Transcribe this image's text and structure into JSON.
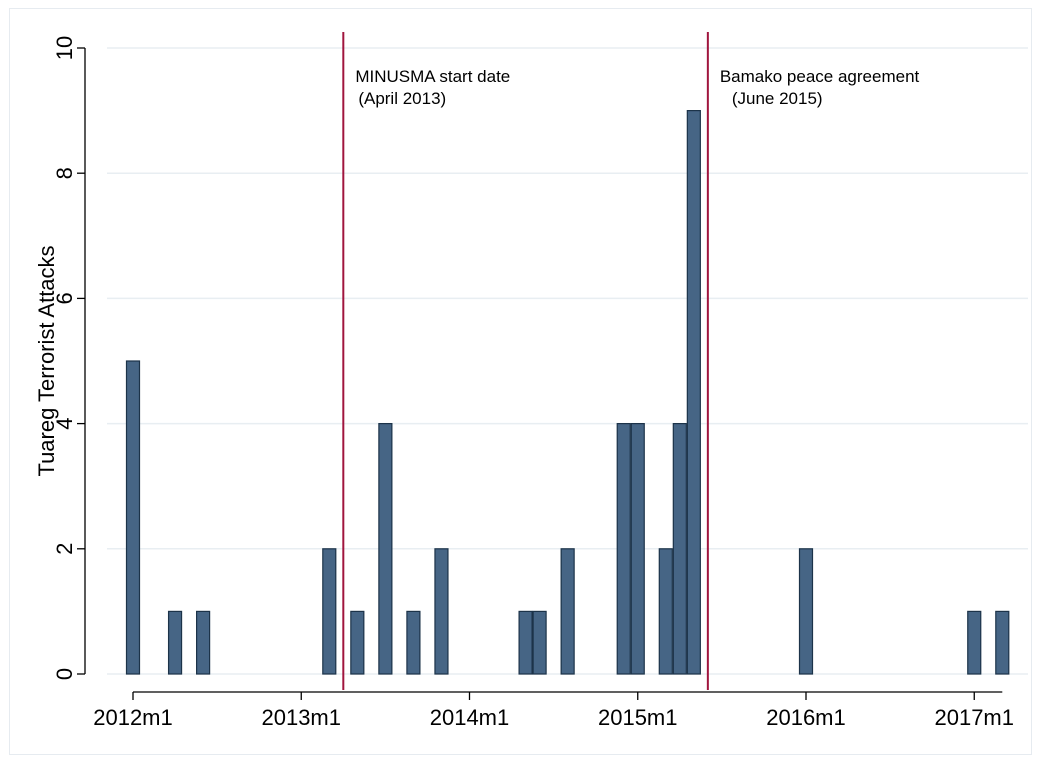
{
  "chart_data": {
    "type": "bar",
    "title": "",
    "xlabel": "",
    "ylabel": "Tuareg Terrorist Attacks",
    "ylim": [
      0,
      10
    ],
    "xlim": [
      "2012m1",
      "2017m3"
    ],
    "yticks": [
      0,
      2,
      4,
      6,
      8,
      10
    ],
    "xticks": [
      "2012m1",
      "2013m1",
      "2014m1",
      "2015m1",
      "2016m1",
      "2017m1"
    ],
    "grid": true,
    "series": [
      {
        "x": [
          "2012m1",
          "2012m4",
          "2012m6",
          "2013m3",
          "2013m5",
          "2013m7",
          "2013m9",
          "2013m11",
          "2014m5",
          "2014m6",
          "2014m8",
          "2014m12",
          "2015m1",
          "2015m3",
          "2015m4",
          "2015m5",
          "2016m1",
          "2017m1",
          "2017m3"
        ],
        "values": [
          5,
          1,
          1,
          2,
          1,
          4,
          1,
          2,
          1,
          1,
          2,
          4,
          4,
          2,
          4,
          9,
          2,
          1,
          1
        ]
      }
    ],
    "bar_color": "#466585",
    "bar_edge_color": "#1c3349",
    "grid_color": "#e8eef2",
    "reference_line_color": "#a0153e",
    "annotations": [
      {
        "x": "2013m4",
        "lines": [
          "MINUSMA start date",
          "(April 2013)"
        ]
      },
      {
        "x": "2015m6",
        "lines": [
          "Bamako peace agreement",
          "(June 2015)"
        ]
      }
    ]
  }
}
